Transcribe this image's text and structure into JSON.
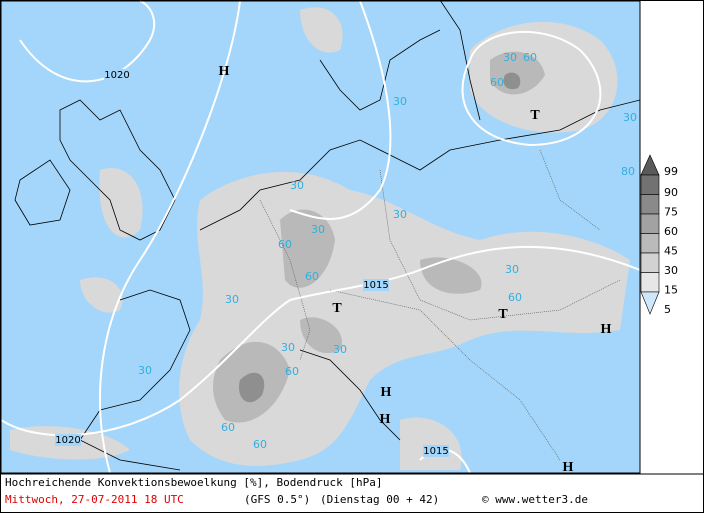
{
  "map": {
    "systems": [
      "H",
      "T",
      "T",
      "T",
      "H",
      "H",
      "H",
      "H"
    ],
    "isobar_labels": [
      "1020",
      "1015",
      "1020",
      "1015"
    ],
    "cloud_labels": [
      "30",
      "60",
      "60",
      "30",
      "30",
      "80",
      "30",
      "60",
      "30",
      "60",
      "30",
      "60",
      "30",
      "60",
      "30",
      "60",
      "30",
      "60",
      "30",
      "30"
    ],
    "legend": {
      "levels": [
        99,
        90,
        75,
        60,
        45,
        30,
        15,
        5
      ],
      "colors": [
        "#5a5a5a",
        "#727272",
        "#8a8a8a",
        "#a2a2a2",
        "#bababa",
        "#d2d2d2",
        "#e6e6e6",
        "#cfe6fb"
      ]
    }
  },
  "footer": {
    "description": "Hochreichende Konvektionsbewoelkung [%], Bodendruck [hPa]",
    "date": "Mittwoch, 27-07-2011  18 UTC",
    "model": "(GFS 0.5°)",
    "run": "(Dienstag 00 + 42)",
    "credit": "© www.wetter3.de"
  }
}
